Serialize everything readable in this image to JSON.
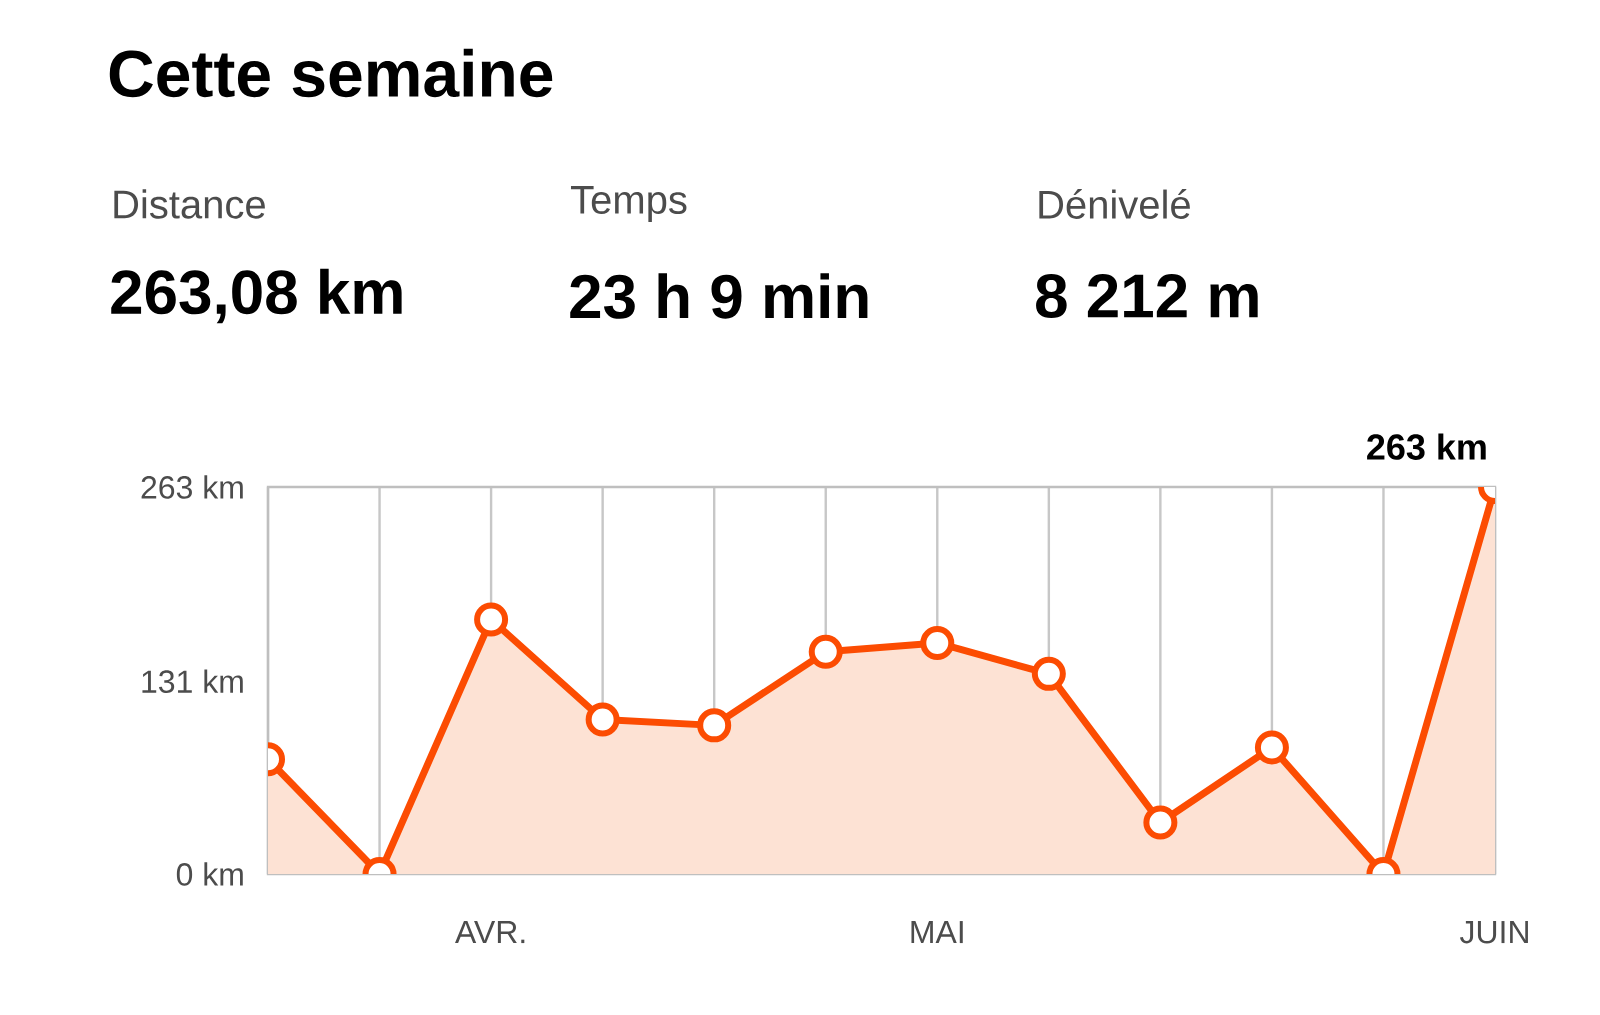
{
  "chart_data": {
    "type": "area",
    "title": "Cette semaine",
    "categories": [
      null,
      null,
      "AVR.",
      null,
      null,
      null,
      "MAI",
      null,
      null,
      null,
      null,
      "JUIN"
    ],
    "series": [
      {
        "color": "#fc4c02",
        "values": [
          78,
          0,
          173,
          105,
          101,
          151,
          157,
          136,
          35,
          86,
          0,
          263
        ]
      }
    ],
    "ylim": [
      0,
      263
    ],
    "yticks": [
      {
        "value": 0,
        "label": "0 km"
      },
      {
        "value": 131,
        "label": "131 km"
      },
      {
        "value": 263,
        "label": "263 km"
      }
    ],
    "grid": "x",
    "marker": "circle",
    "line_style": "solid",
    "annotations": [
      "Distance",
      "263,08 km",
      "Temps",
      "23 h  9 min",
      "Dénivelé",
      "8 212 m",
      "263 km"
    ]
  }
}
